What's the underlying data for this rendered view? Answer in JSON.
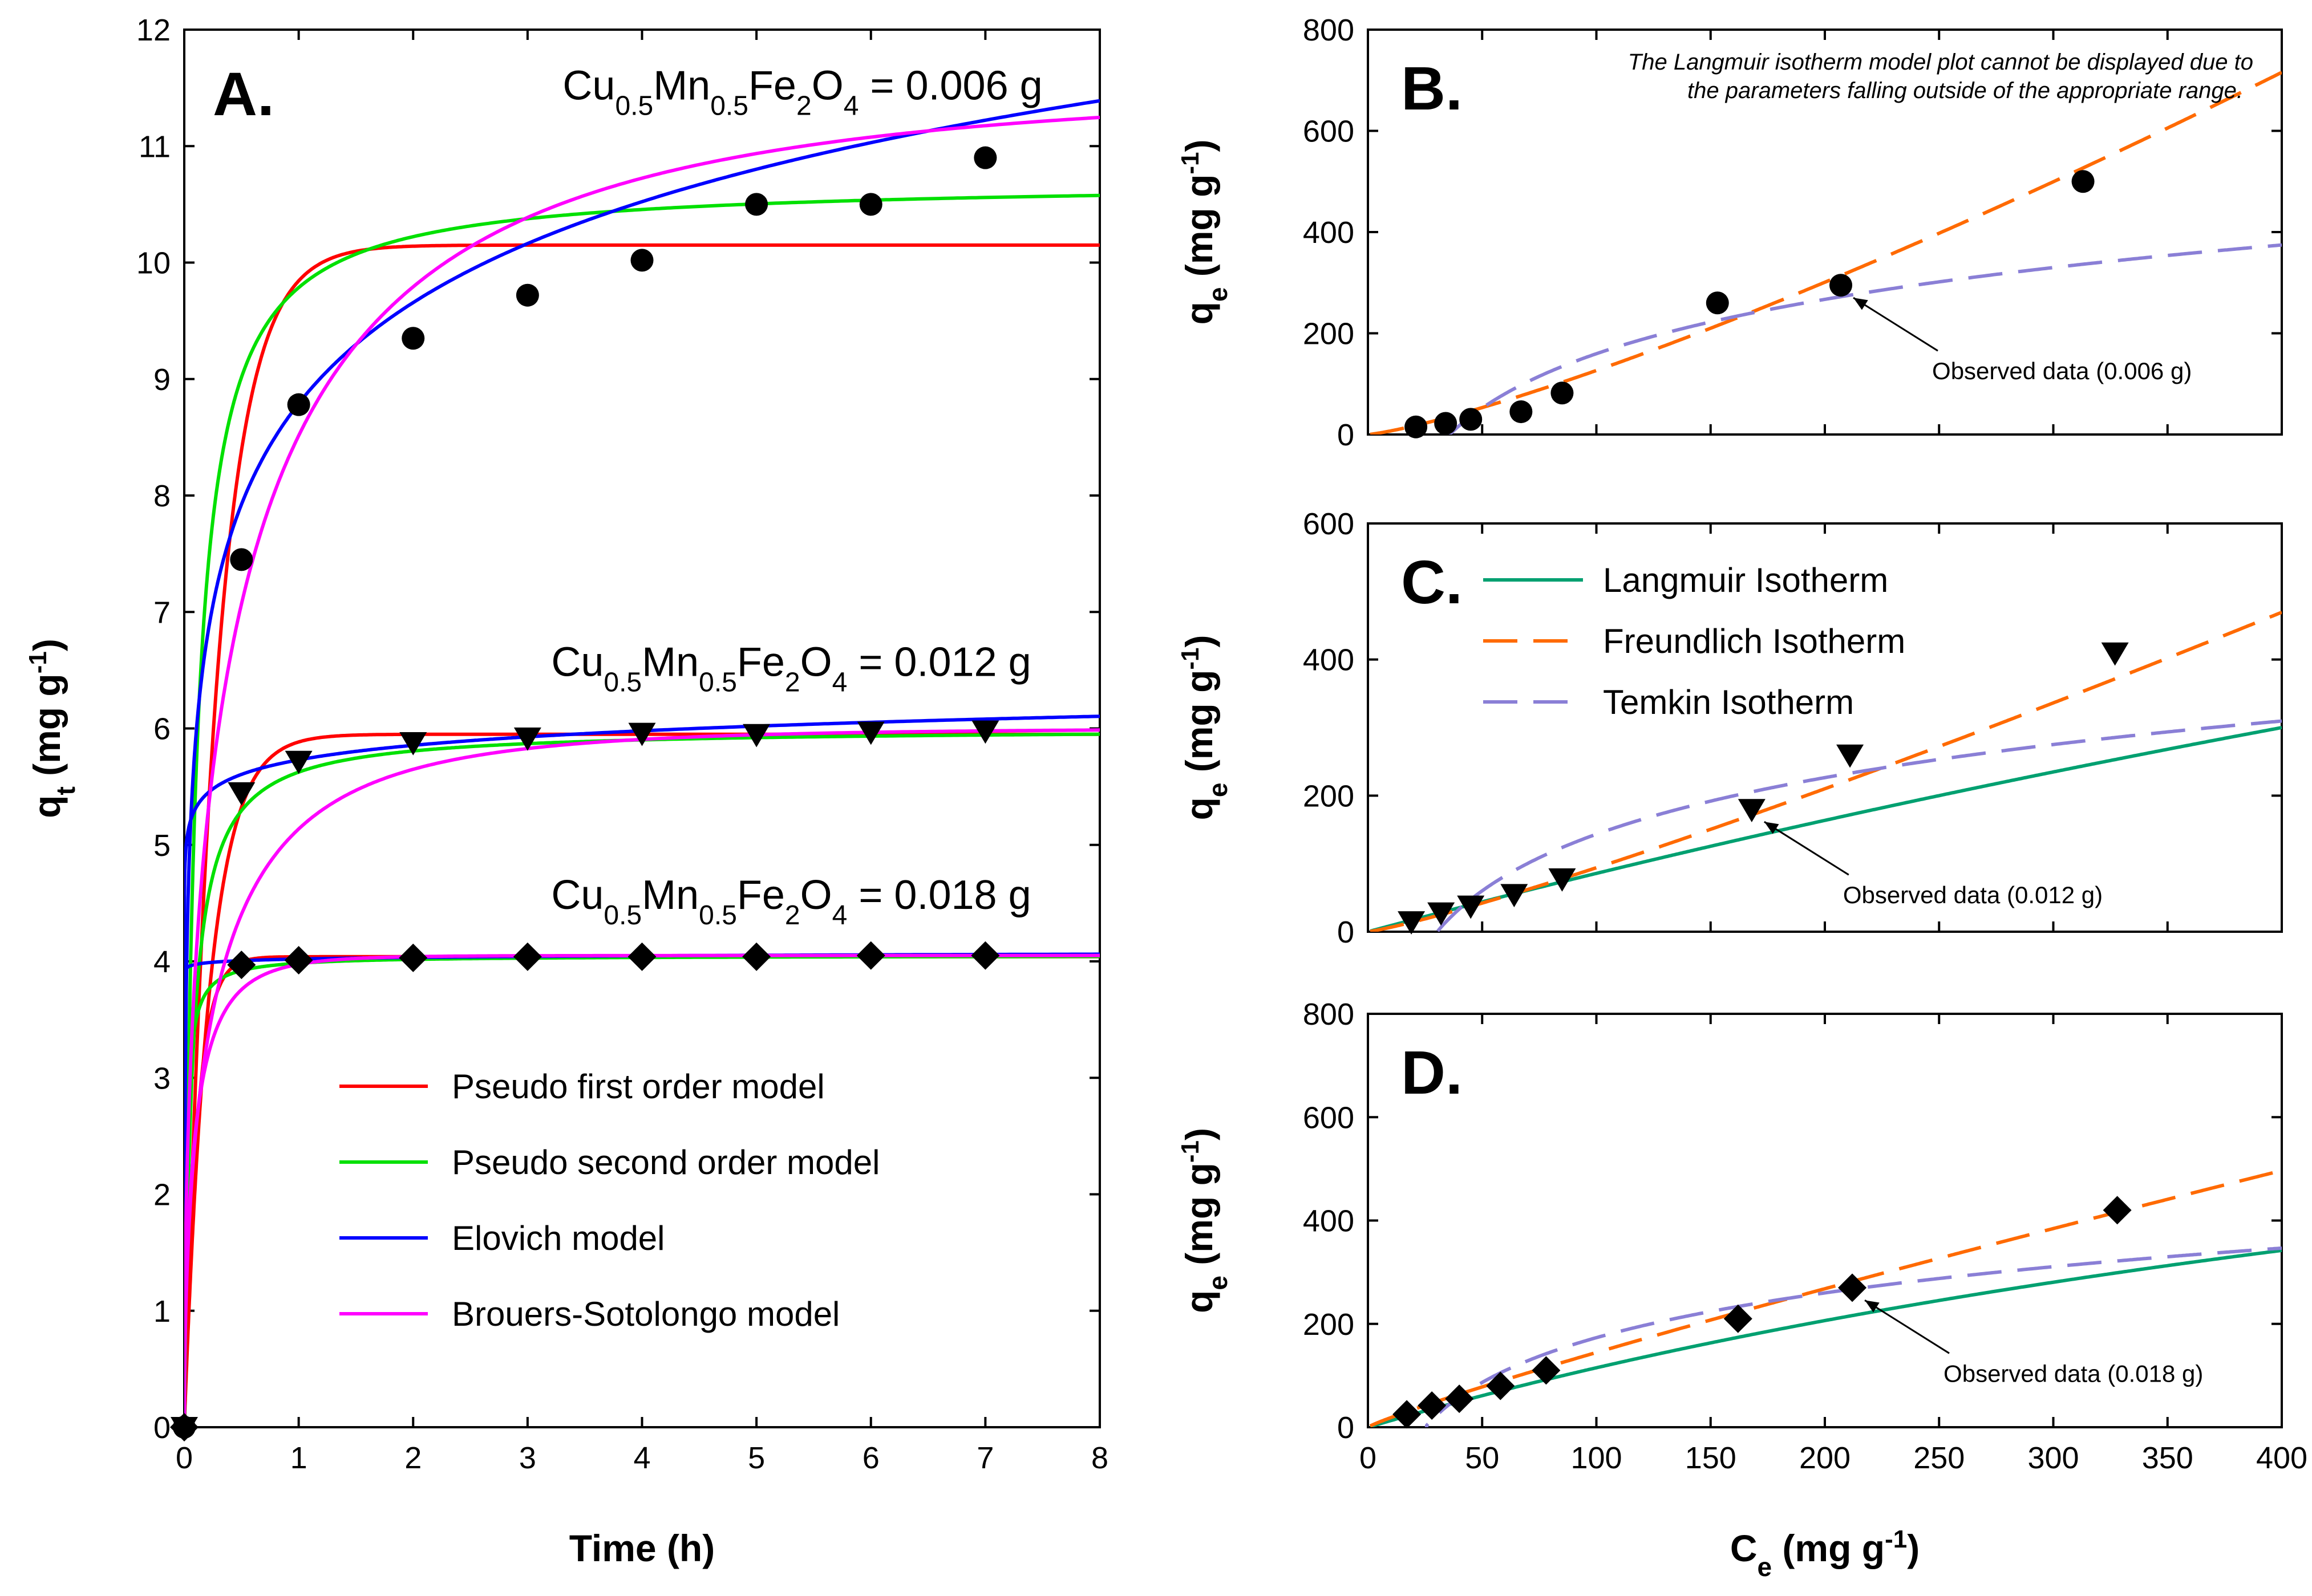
{
  "chart_data": [
    {
      "id": "A",
      "type": "scatter",
      "panel_label": "A.",
      "xlabel": "Time (h)",
      "ylabel": {
        "base": "q",
        "sub": "t",
        "unit_pre": " (mg g",
        "sup": "-1",
        "unit_post": ")"
      },
      "xlim": [
        0,
        8
      ],
      "ylim": [
        0,
        12
      ],
      "xticks": [
        0,
        1,
        2,
        3,
        4,
        5,
        6,
        7,
        8
      ],
      "yticks": [
        0,
        1,
        2,
        3,
        4,
        5,
        6,
        7,
        8,
        9,
        10,
        11,
        12
      ],
      "annotations": [
        {
          "text_parts": [
            "Cu",
            "0.5",
            "Mn",
            "0.5",
            "Fe",
            "2",
            "O",
            "4",
            " = 0.006 g"
          ],
          "anchor_x": 7.5,
          "anchor_y": 11.4
        },
        {
          "text_parts": [
            "Cu",
            "0.5",
            "Mn",
            "0.5",
            "Fe",
            "2",
            "O",
            "4",
            " = 0.012 g"
          ],
          "anchor_x": 7.4,
          "anchor_y": 6.45
        },
        {
          "text_parts": [
            "Cu",
            "0.5",
            "Mn",
            "0.5",
            "Fe",
            "2",
            "O",
            "4",
            " = 0.018 g"
          ],
          "anchor_x": 7.4,
          "anchor_y": 4.45
        }
      ],
      "legend": {
        "placement": "bottom-center",
        "entries": [
          {
            "label": "Pseudo first order model",
            "color": "#ff0000"
          },
          {
            "label": "Pseudo second order model",
            "color": "#00e000"
          },
          {
            "label": "Elovich model",
            "color": "#0000ff"
          },
          {
            "label": "Brouers-Sotolongo model",
            "color": "#ff00ff"
          }
        ]
      },
      "series": [
        {
          "name": "Observed 0.006 g",
          "marker": "circle",
          "x": [
            0,
            0.5,
            1,
            2,
            3,
            4,
            5,
            6,
            7
          ],
          "y": [
            0,
            7.45,
            8.78,
            9.35,
            9.72,
            10.02,
            10.5,
            10.5,
            10.9
          ]
        },
        {
          "name": "Observed 0.012 g",
          "marker": "triangle-down",
          "x": [
            0,
            0.5,
            1,
            2,
            3,
            4,
            5,
            6,
            7
          ],
          "y": [
            0,
            5.45,
            5.72,
            5.88,
            5.92,
            5.96,
            5.95,
            5.97,
            5.98
          ]
        },
        {
          "name": "Observed 0.018 g",
          "marker": "diamond",
          "x": [
            0,
            0.5,
            1,
            2,
            3,
            4,
            5,
            6,
            7
          ],
          "y": [
            0,
            3.97,
            4.01,
            4.03,
            4.04,
            4.04,
            4.04,
            4.05,
            4.05
          ]
        }
      ],
      "models": [
        {
          "kind": "pfo",
          "color": "#ff0000",
          "params": [
            [
              10.15,
              3.5
            ],
            [
              5.95,
              4.5
            ],
            [
              4.04,
              9.0
            ]
          ]
        },
        {
          "kind": "pso",
          "color": "#00e000",
          "params": [
            [
              10.7,
              1.0
            ],
            [
              6.0,
              2.5
            ],
            [
              4.05,
              15.0
            ]
          ]
        },
        {
          "kind": "elovich",
          "color": "#0000ff",
          "params": [
            [
              8.79,
              1.25
            ],
            [
              5.73,
              0.18
            ],
            [
              4.02,
              0.02
            ]
          ]
        },
        {
          "kind": "bs",
          "color": "#ff00ff",
          "params": [
            [
              11.5,
              0.55,
              0.5
            ],
            [
              6.0,
              0.3,
              0.55
            ],
            [
              4.05,
              0.1,
              0.6
            ]
          ]
        }
      ]
    },
    {
      "id": "B",
      "type": "scatter",
      "panel_label": "B.",
      "xlim": [
        0,
        400
      ],
      "ylim": [
        0,
        800
      ],
      "yticks": [
        0,
        200,
        400,
        600,
        800
      ],
      "xticks": [
        0,
        50,
        100,
        150,
        200,
        250,
        300,
        350,
        400
      ],
      "ylabel": {
        "base": "q",
        "sub": "e",
        "unit_pre": " (mg g",
        "sup": "-1",
        "unit_post": ")"
      },
      "note": [
        "The Langmuir isotherm model plot cannot be displayed due to",
        "the parameters falling outside of the appropriate range."
      ],
      "callout": {
        "text": "Observed data (0.006 g)",
        "point": [
          207,
          295
        ]
      },
      "series": [
        {
          "name": "Observed 0.006 g",
          "marker": "circle",
          "x": [
            21,
            34,
            45,
            67,
            85,
            153,
            207,
            313
          ],
          "y": [
            15,
            22,
            30,
            45,
            82,
            260,
            295,
            500
          ]
        }
      ],
      "models": [
        {
          "kind": "freundlich",
          "color": "#ff6a00",
          "params": [
            0.4,
            1.25
          ]
        },
        {
          "kind": "temkin",
          "color": "#8a7fd6",
          "params": [
            155,
            0.028
          ]
        }
      ]
    },
    {
      "id": "C",
      "type": "scatter",
      "panel_label": "C.",
      "xlim": [
        0,
        400
      ],
      "ylim": [
        0,
        600
      ],
      "yticks": [
        0,
        200,
        400,
        600
      ],
      "xticks": [
        0,
        50,
        100,
        150,
        200,
        250,
        300,
        350,
        400
      ],
      "ylabel": {
        "base": "q",
        "sub": "e",
        "unit_pre": " (mg g",
        "sup": "-1",
        "unit_post": ")"
      },
      "legend": {
        "placement": "top-left",
        "entries": [
          {
            "label": "Langmuir Isotherm",
            "color": "#00a070",
            "dash": "solid"
          },
          {
            "label": "Freundlich Isotherm",
            "color": "#ff6a00",
            "dash": "long"
          },
          {
            "label": "Temkin Isotherm",
            "color": "#8a7fd6",
            "dash": "long"
          }
        ]
      },
      "callout": {
        "text": "Observed data (0.012 g)",
        "point": [
          168,
          180
        ]
      },
      "series": [
        {
          "name": "Observed 0.012 g",
          "marker": "triangle-down",
          "x": [
            19,
            32,
            45,
            64,
            85,
            168,
            211,
            327
          ],
          "y": [
            15,
            28,
            38,
            55,
            78,
            180,
            260,
            410
          ]
        }
      ],
      "models": [
        {
          "kind": "langmuir",
          "color": "#00a070",
          "params": [
            1800,
            0.0005
          ]
        },
        {
          "kind": "freundlich",
          "color": "#ff6a00",
          "params": [
            0.45,
            1.16
          ]
        },
        {
          "kind": "temkin",
          "color": "#8a7fd6",
          "params": [
            120,
            0.033
          ]
        }
      ]
    },
    {
      "id": "D",
      "type": "scatter",
      "panel_label": "D.",
      "xlim": [
        0,
        400
      ],
      "ylim": [
        0,
        800
      ],
      "yticks": [
        0,
        200,
        400,
        600,
        800
      ],
      "xticks": [
        0,
        50,
        100,
        150,
        200,
        250,
        300,
        350,
        400
      ],
      "xlabel": {
        "base": "C",
        "sub": "e",
        "unit_pre": " (mg g",
        "sup": "-1",
        "unit_post": ")"
      },
      "ylabel": {
        "base": "q",
        "sub": "e",
        "unit_pre": " (mg g",
        "sup": "-1",
        "unit_post": ")"
      },
      "callout": {
        "text": "Observed data (0.018 g)",
        "point": [
          212,
          270
        ]
      },
      "series": [
        {
          "name": "Observed 0.018 g",
          "marker": "diamond",
          "x": [
            17,
            28,
            40,
            58,
            78,
            162,
            212,
            328
          ],
          "y": [
            25,
            42,
            55,
            80,
            110,
            210,
            270,
            420
          ]
        }
      ],
      "models": [
        {
          "kind": "langmuir",
          "color": "#00a070",
          "params": [
            1000,
            0.0013
          ]
        },
        {
          "kind": "freundlich",
          "color": "#ff6a00",
          "params": [
            2.4,
            0.89
          ]
        },
        {
          "kind": "temkin",
          "color": "#8a7fd6",
          "params": [
            125,
            0.04
          ]
        }
      ]
    }
  ]
}
